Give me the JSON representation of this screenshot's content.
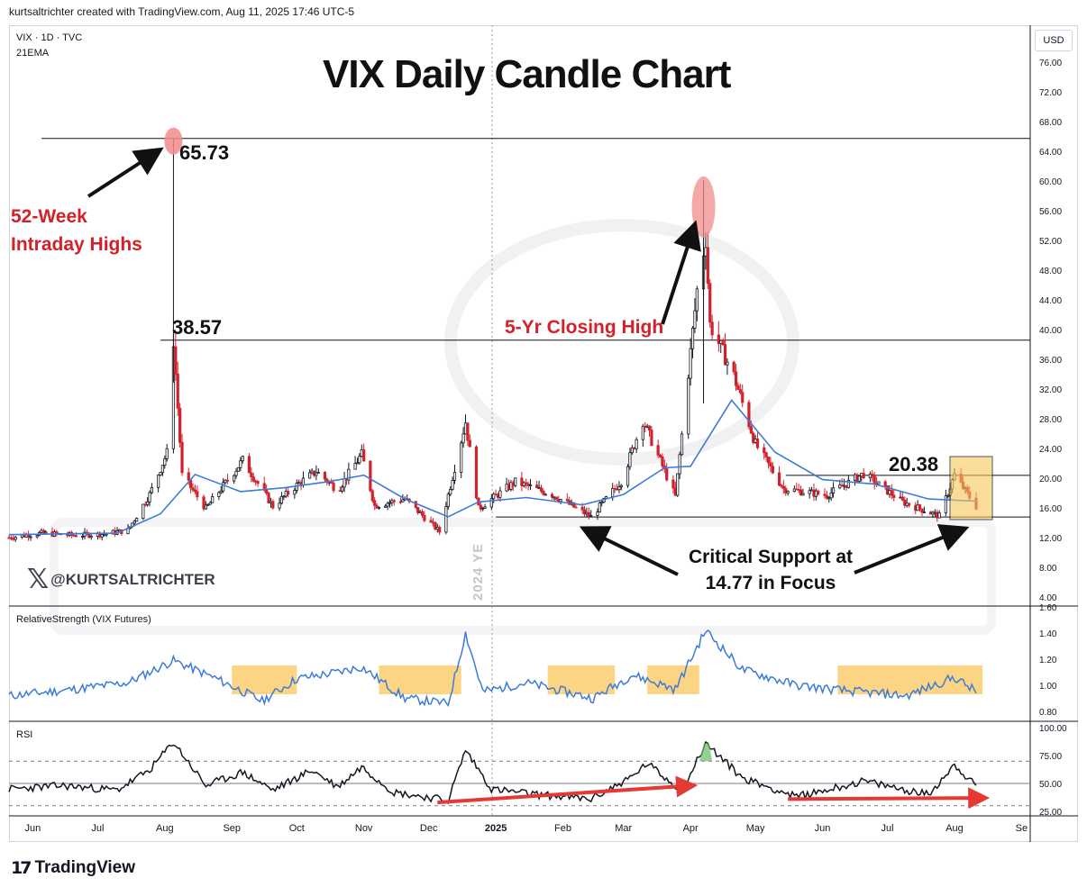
{
  "credit": "kurtsaltrichter created with TradingView.com, Aug 11, 2025 17:46 UTC-5",
  "header": {
    "symbol": "VIX · 1D · TVC",
    "indicator": "21EMA"
  },
  "currency_label": "USD",
  "handle": {
    "icon": "x-logo-icon",
    "text": "@KURTSALTRICHTER"
  },
  "year_marker": "2024 YE",
  "branding": {
    "icon": "tradingview-logo-icon",
    "mark": "17",
    "word": "TradingView"
  },
  "annotations": {
    "high_label": "65.73",
    "mid_label": "38.57",
    "recent_label": "20.38",
    "weekly_highs": [
      "52-Week",
      "Intraday Highs"
    ],
    "closing_high": "5-Yr Closing High",
    "support": [
      "Critical Support at",
      "14.77 in Focus"
    ]
  },
  "colors": {
    "up": "#26a69a",
    "down": "#d3212c",
    "ema": "#3d7bd9",
    "highlight": "#f9c75a",
    "rsi": "#131722",
    "arrow_red": "#e53935",
    "text": "#131722"
  },
  "chart_data": [
    {
      "type": "candlestick",
      "title": "VIX Daily Candle Chart",
      "ylim": [
        4,
        78
      ],
      "yticks": [
        "76.00",
        "72.00",
        "68.00",
        "64.00",
        "60.00",
        "56.00",
        "52.00",
        "48.00",
        "44.00",
        "40.00",
        "36.00",
        "32.00",
        "28.00",
        "24.00",
        "20.00",
        "16.00",
        "12.00",
        "8.00",
        "4.00"
      ],
      "ytick_values": [
        76,
        72,
        68,
        64,
        60,
        56,
        52,
        48,
        44,
        40,
        36,
        32,
        28,
        24,
        20,
        16,
        12,
        8,
        4
      ],
      "xticks": [
        "Jun",
        "Jul",
        "Aug",
        "Sep",
        "Oct",
        "Nov",
        "Dec",
        "2025",
        "Feb",
        "Mar",
        "Apr",
        "May",
        "Jun",
        "Jul",
        "Aug",
        "Se"
      ],
      "x_range": [
        "2024-05-21",
        "2025-09-05"
      ],
      "xtick_dates": [
        "2024-06-01",
        "2024-07-01",
        "2024-08-01",
        "2024-09-01",
        "2024-10-01",
        "2024-11-01",
        "2024-12-01",
        "2025-01-01",
        "2025-02-01",
        "2025-03-01",
        "2025-04-01",
        "2025-05-01",
        "2025-06-01",
        "2025-07-01",
        "2025-08-01",
        "2025-09-01"
      ],
      "horizontal_levels": [
        65.73,
        38.57,
        20.38,
        14.77
      ],
      "series": [
        {
          "name": "VIX",
          "close_path": [
            [
              "2024-05-21",
              12.0
            ],
            [
              "2024-06-05",
              12.6
            ],
            [
              "2024-06-20",
              12.3
            ],
            [
              "2024-07-05",
              12.5
            ],
            [
              "2024-07-15",
              13.0
            ],
            [
              "2024-07-25",
              17.8
            ],
            [
              "2024-08-02",
              23.4
            ],
            [
              "2024-08-05",
              38.57
            ],
            [
              "2024-08-09",
              20.4
            ],
            [
              "2024-08-20",
              15.9
            ],
            [
              "2024-09-06",
              22.4
            ],
            [
              "2024-09-20",
              16.2
            ],
            [
              "2024-10-02",
              19.3
            ],
            [
              "2024-10-10",
              20.9
            ],
            [
              "2024-10-20",
              18.4
            ],
            [
              "2024-10-31",
              23.2
            ],
            [
              "2024-11-06",
              16.3
            ],
            [
              "2024-11-20",
              17.2
            ],
            [
              "2024-12-06",
              12.8
            ],
            [
              "2024-12-18",
              27.6
            ],
            [
              "2024-12-24",
              15.9
            ],
            [
              "2025-01-10",
              19.5
            ],
            [
              "2025-01-27",
              17.8
            ],
            [
              "2025-02-14",
              14.8
            ],
            [
              "2025-02-28",
              19.6
            ],
            [
              "2025-03-10",
              27.8
            ],
            [
              "2025-03-25",
              17.5
            ],
            [
              "2025-04-04",
              45.3
            ],
            [
              "2025-04-08",
              52.3
            ],
            [
              "2025-04-10",
              40.7
            ],
            [
              "2025-04-21",
              33.8
            ],
            [
              "2025-05-01",
              24.6
            ],
            [
              "2025-05-14",
              18.6
            ],
            [
              "2025-06-03",
              17.7
            ],
            [
              "2025-06-20",
              20.6
            ],
            [
              "2025-07-08",
              16.8
            ],
            [
              "2025-07-25",
              14.9
            ],
            [
              "2025-08-01",
              20.4
            ],
            [
              "2025-08-11",
              16.2
            ]
          ],
          "intraday_highs": [
            [
              "2024-08-05",
              65.73
            ],
            [
              "2025-04-07",
              60.1
            ]
          ]
        },
        {
          "name": "21EMA",
          "values": [
            [
              "2024-05-21",
              12.4
            ],
            [
              "2024-07-10",
              12.6
            ],
            [
              "2024-07-30",
              15.2
            ],
            [
              "2024-08-15",
              20.5
            ],
            [
              "2024-09-05",
              18.2
            ],
            [
              "2024-09-25",
              18.7
            ],
            [
              "2024-10-15",
              19.5
            ],
            [
              "2024-11-01",
              20.4
            ],
            [
              "2024-11-20",
              17.2
            ],
            [
              "2024-12-10",
              14.8
            ],
            [
              "2024-12-24",
              16.8
            ],
            [
              "2025-01-15",
              17.4
            ],
            [
              "2025-02-10",
              16.4
            ],
            [
              "2025-03-01",
              17.8
            ],
            [
              "2025-03-20",
              21.4
            ],
            [
              "2025-04-01",
              21.6
            ],
            [
              "2025-04-20",
              30.5
            ],
            [
              "2025-05-10",
              23.5
            ],
            [
              "2025-06-01",
              19.8
            ],
            [
              "2025-06-25",
              19.2
            ],
            [
              "2025-07-20",
              17.2
            ],
            [
              "2025-08-11",
              16.9
            ]
          ]
        }
      ]
    },
    {
      "type": "line",
      "title": "RelativeStrength (VIX Futures)",
      "ylim": [
        0.75,
        1.6
      ],
      "yticks": [
        "1.60",
        "1.40",
        "1.20",
        "1.00",
        "0.80"
      ],
      "ytick_values": [
        1.6,
        1.4,
        1.2,
        1.0,
        0.8
      ],
      "series": [
        {
          "name": "RelativeStrength (VIX Futures)",
          "values": [
            [
              "2024-05-21",
              0.92
            ],
            [
              "2024-06-15",
              0.96
            ],
            [
              "2024-07-15",
              1.02
            ],
            [
              "2024-08-05",
              1.19
            ],
            [
              "2024-08-25",
              1.05
            ],
            [
              "2024-09-15",
              0.88
            ],
            [
              "2024-10-01",
              1.05
            ],
            [
              "2024-10-20",
              1.1
            ],
            [
              "2024-10-31",
              1.14
            ],
            [
              "2024-11-20",
              0.9
            ],
            [
              "2024-12-10",
              0.86
            ],
            [
              "2024-12-18",
              1.4
            ],
            [
              "2024-12-26",
              0.95
            ],
            [
              "2025-01-15",
              1.02
            ],
            [
              "2025-02-15",
              0.9
            ],
            [
              "2025-03-05",
              1.08
            ],
            [
              "2025-03-25",
              0.97
            ],
            [
              "2025-04-08",
              1.42
            ],
            [
              "2025-04-25",
              1.12
            ],
            [
              "2025-05-20",
              1.0
            ],
            [
              "2025-06-10",
              0.96
            ],
            [
              "2025-07-10",
              0.92
            ],
            [
              "2025-08-01",
              1.06
            ],
            [
              "2025-08-11",
              0.95
            ]
          ]
        }
      ],
      "highlight_ranges": [
        [
          "2024-09-01",
          "2024-10-01"
        ],
        [
          "2024-11-08",
          "2024-12-16"
        ],
        [
          "2025-01-25",
          "2025-02-25"
        ],
        [
          "2025-03-12",
          "2025-04-05"
        ],
        [
          "2025-06-08",
          "2025-08-14"
        ]
      ]
    },
    {
      "type": "line",
      "title": "RSI",
      "ylim": [
        20,
        100
      ],
      "yticks": [
        "100.00",
        "75.00",
        "50.00",
        "25.00"
      ],
      "ytick_values": [
        100,
        75,
        50,
        25
      ],
      "reference_lines": [
        70,
        50,
        30
      ],
      "series": [
        {
          "name": "RSI",
          "values": [
            [
              "2024-05-21",
              45
            ],
            [
              "2024-06-15",
              48
            ],
            [
              "2024-07-10",
              44
            ],
            [
              "2024-07-25",
              62
            ],
            [
              "2024-08-05",
              87
            ],
            [
              "2024-08-20",
              48
            ],
            [
              "2024-09-06",
              60
            ],
            [
              "2024-09-20",
              44
            ],
            [
              "2024-10-08",
              62
            ],
            [
              "2024-10-20",
              47
            ],
            [
              "2024-10-31",
              65
            ],
            [
              "2024-11-15",
              42
            ],
            [
              "2024-12-10",
              35
            ],
            [
              "2024-12-18",
              80
            ],
            [
              "2024-12-30",
              45
            ],
            [
              "2025-01-20",
              40
            ],
            [
              "2025-02-14",
              36
            ],
            [
              "2025-03-05",
              56
            ],
            [
              "2025-03-12",
              68
            ],
            [
              "2025-03-28",
              43
            ],
            [
              "2025-04-08",
              86
            ],
            [
              "2025-04-25",
              55
            ],
            [
              "2025-05-20",
              38
            ],
            [
              "2025-06-20",
              52
            ],
            [
              "2025-07-20",
              40
            ],
            [
              "2025-08-01",
              67
            ],
            [
              "2025-08-11",
              47
            ]
          ]
        }
      ],
      "divergence_arrows": [
        [
          [
            "2024-12-05",
            33
          ],
          [
            "2025-04-01",
            48
          ]
        ],
        [
          [
            "2025-05-16",
            36
          ],
          [
            "2025-08-14",
            37
          ]
        ]
      ]
    }
  ]
}
